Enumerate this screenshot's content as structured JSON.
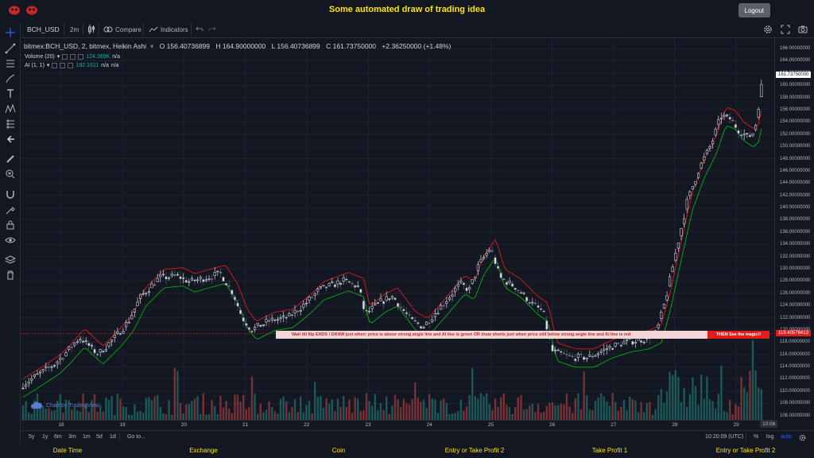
{
  "app": {
    "title": "Some automated draw of trading idea",
    "logout_label": "Logout"
  },
  "toolbar": {
    "symbol": "BCH_USD",
    "interval": "2m",
    "compare_label": "Compare",
    "indicators_label": "Indicators"
  },
  "legend": {
    "symbol_full": "bitmex:BCH_USD, 2, bitmex, Heikin Ashi",
    "open": "O 156.40736899",
    "high": "H 164.90000000",
    "low": "L 156.40736899",
    "close": "C 161.73750000",
    "change": "+2.36250000 (+1.48%)",
    "volume_label": "Volume (20)",
    "volume_value": "124.369K",
    "volume_na": "n/a",
    "ai_label": "AI (1, 1)",
    "ai_value": "192.1611",
    "ai_na1": "n/a",
    "ai_na2": "n/a"
  },
  "banner": {
    "text": "Wait till flip ENDS  !   DRAW just when:  price is above strong angle line and AI line is green         OR         draw shorts just when price still below strong angle line and AI line is red",
    "magic": "THEN See the magic!!"
  },
  "watermark": "Chart by TradingView",
  "range_buttons": [
    "5y",
    "1y",
    "6m",
    "3m",
    "1m",
    "5d",
    "1d"
  ],
  "goto_label": "Go to...",
  "clock": "10:20:09 (UTC)",
  "scale_buttons": [
    "%",
    "log",
    "auto"
  ],
  "time_cursor_label": "10:06",
  "footer_nav": [
    "Date Time",
    "Exchange",
    "Coin",
    "Entry or Take Profit 2",
    "Take Profit 1",
    "Entry or Take Profit 2"
  ],
  "colors": {
    "bull": "#26a69a",
    "bear": "#ef5350",
    "ai_red": "#ff1a1a",
    "ai_green": "#00c805",
    "title_yellow": "#ffe400",
    "background": "#131722"
  },
  "chart_data": {
    "type": "candlestick",
    "chart_style": "Heikin Ashi",
    "ylim": [
      105.3,
      167.7
    ],
    "y_ticks": [
      106,
      108,
      110,
      112,
      114,
      116,
      118,
      120,
      122,
      124,
      126,
      128,
      130,
      132,
      134,
      136,
      138,
      140,
      142,
      144,
      146,
      148,
      150,
      152,
      154,
      156,
      158,
      160,
      162,
      164,
      166
    ],
    "x_ticks": [
      "18",
      "19",
      "20",
      "21",
      "22",
      "23",
      "24",
      "25",
      "26",
      "27",
      "28",
      "29"
    ],
    "price_path": [
      [
        17.0,
        112.0
      ],
      [
        17.3,
        110.6
      ],
      [
        17.6,
        112.5
      ],
      [
        17.9,
        114.5
      ],
      [
        18.1,
        116.5
      ],
      [
        18.3,
        118.8
      ],
      [
        18.6,
        116.0
      ],
      [
        18.9,
        119.0
      ],
      [
        19.1,
        121.5
      ],
      [
        19.3,
        125.5
      ],
      [
        19.6,
        128.5
      ],
      [
        19.9,
        128.8
      ],
      [
        20.1,
        127.8
      ],
      [
        20.3,
        128.4
      ],
      [
        20.6,
        129.2
      ],
      [
        20.8,
        126.0
      ],
      [
        20.95,
        122.0
      ],
      [
        21.1,
        120.0
      ],
      [
        21.4,
        121.5
      ],
      [
        21.7,
        122.0
      ],
      [
        22.0,
        124.5
      ],
      [
        22.2,
        126.5
      ],
      [
        22.6,
        128.0
      ],
      [
        22.85,
        127.0
      ],
      [
        22.95,
        122.5
      ],
      [
        23.2,
        124.5
      ],
      [
        23.4,
        125.5
      ],
      [
        23.7,
        121.5
      ],
      [
        23.9,
        120.5
      ],
      [
        24.2,
        124.0
      ],
      [
        24.5,
        127.5
      ],
      [
        24.65,
        126.5
      ],
      [
        24.8,
        130.5
      ],
      [
        25.0,
        133.5
      ],
      [
        25.15,
        128.5
      ],
      [
        25.4,
        127.0
      ],
      [
        25.7,
        124.0
      ],
      [
        25.85,
        123.0
      ],
      [
        26.0,
        116.5
      ],
      [
        26.3,
        115.5
      ],
      [
        26.6,
        115.5
      ],
      [
        26.9,
        117.0
      ],
      [
        27.2,
        118.0
      ],
      [
        27.5,
        118.5
      ],
      [
        27.7,
        119.5
      ],
      [
        27.85,
        125.0
      ],
      [
        28.0,
        132.0
      ],
      [
        28.2,
        141.0
      ],
      [
        28.4,
        146.5
      ],
      [
        28.6,
        150.5
      ],
      [
        28.75,
        155.0
      ],
      [
        28.9,
        154.5
      ],
      [
        29.05,
        152.5
      ],
      [
        29.2,
        151.5
      ],
      [
        29.3,
        152.5
      ],
      [
        29.42,
        160.5
      ]
    ],
    "last_price": 161.7375,
    "ai_level": 119.40576413,
    "series": [
      {
        "name": "Volume (20)",
        "last": "124.369K"
      },
      {
        "name": "AI (1, 1)",
        "last": "192.1611"
      }
    ]
  }
}
